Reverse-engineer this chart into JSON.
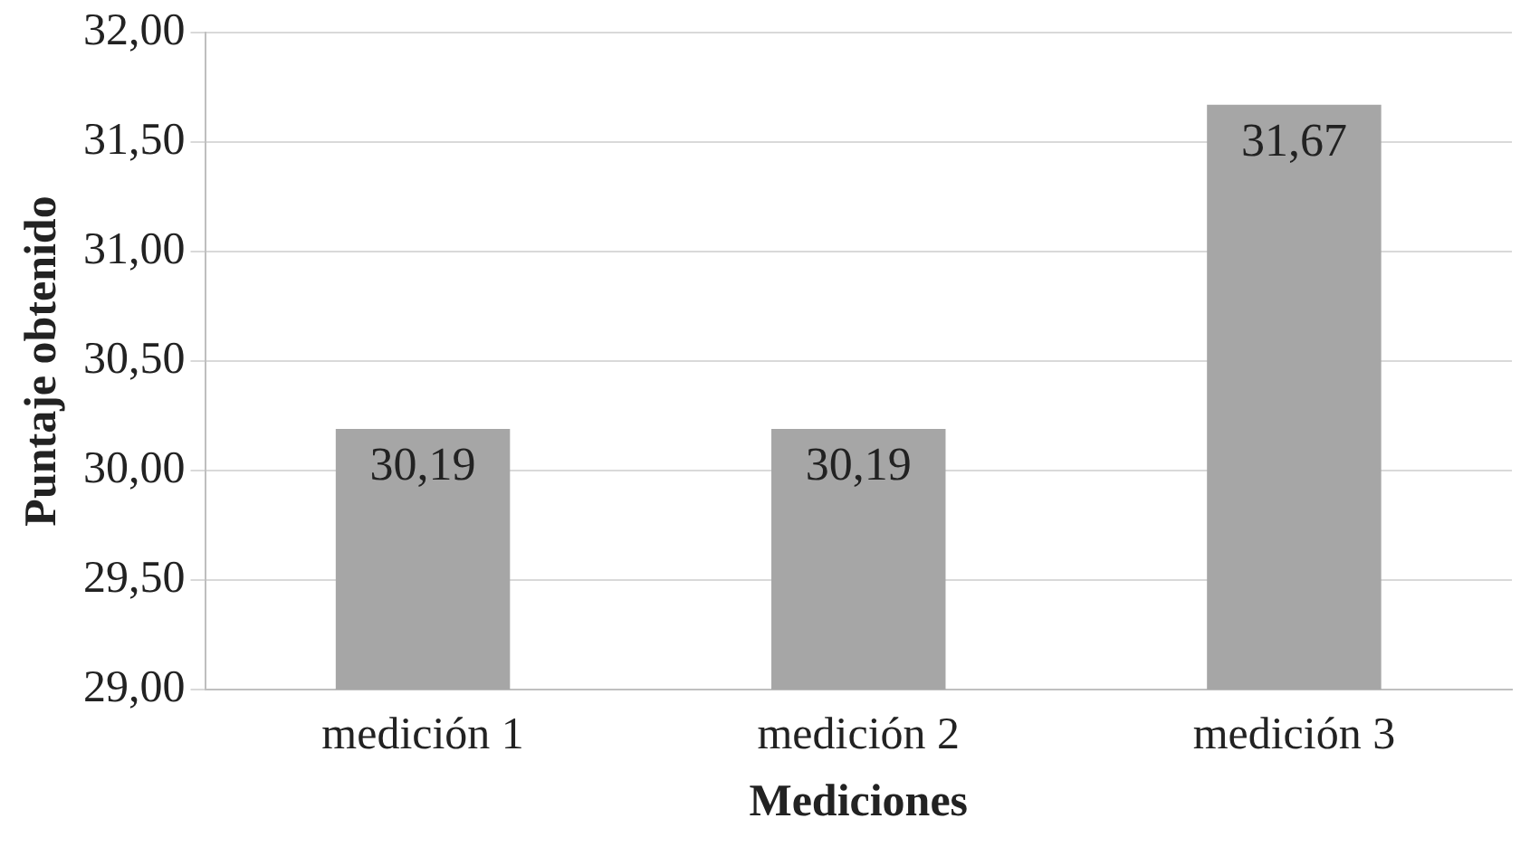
{
  "chart_data": {
    "type": "bar",
    "xlabel": "Mediciones",
    "ylabel": "Puntaje obtenido",
    "categories": [
      "medición 1",
      "medición 2",
      "medición 3"
    ],
    "values": [
      30.19,
      30.19,
      31.67
    ],
    "color": "#a6a6a6",
    "value_labels": [
      "30,19",
      "30,19",
      "31,67"
    ],
    "ylim": [
      29,
      32
    ],
    "yticks": [
      {
        "value": 29,
        "label": "29,00"
      },
      {
        "value": 29.5,
        "label": "29,50"
      },
      {
        "value": 30,
        "label": "30,00"
      },
      {
        "value": 30.5,
        "label": "30,50"
      },
      {
        "value": 31,
        "label": "31,00"
      },
      {
        "value": 31.5,
        "label": "31,50"
      },
      {
        "value": 32,
        "label": "32,00"
      }
    ],
    "grid": "y",
    "legend": false
  }
}
